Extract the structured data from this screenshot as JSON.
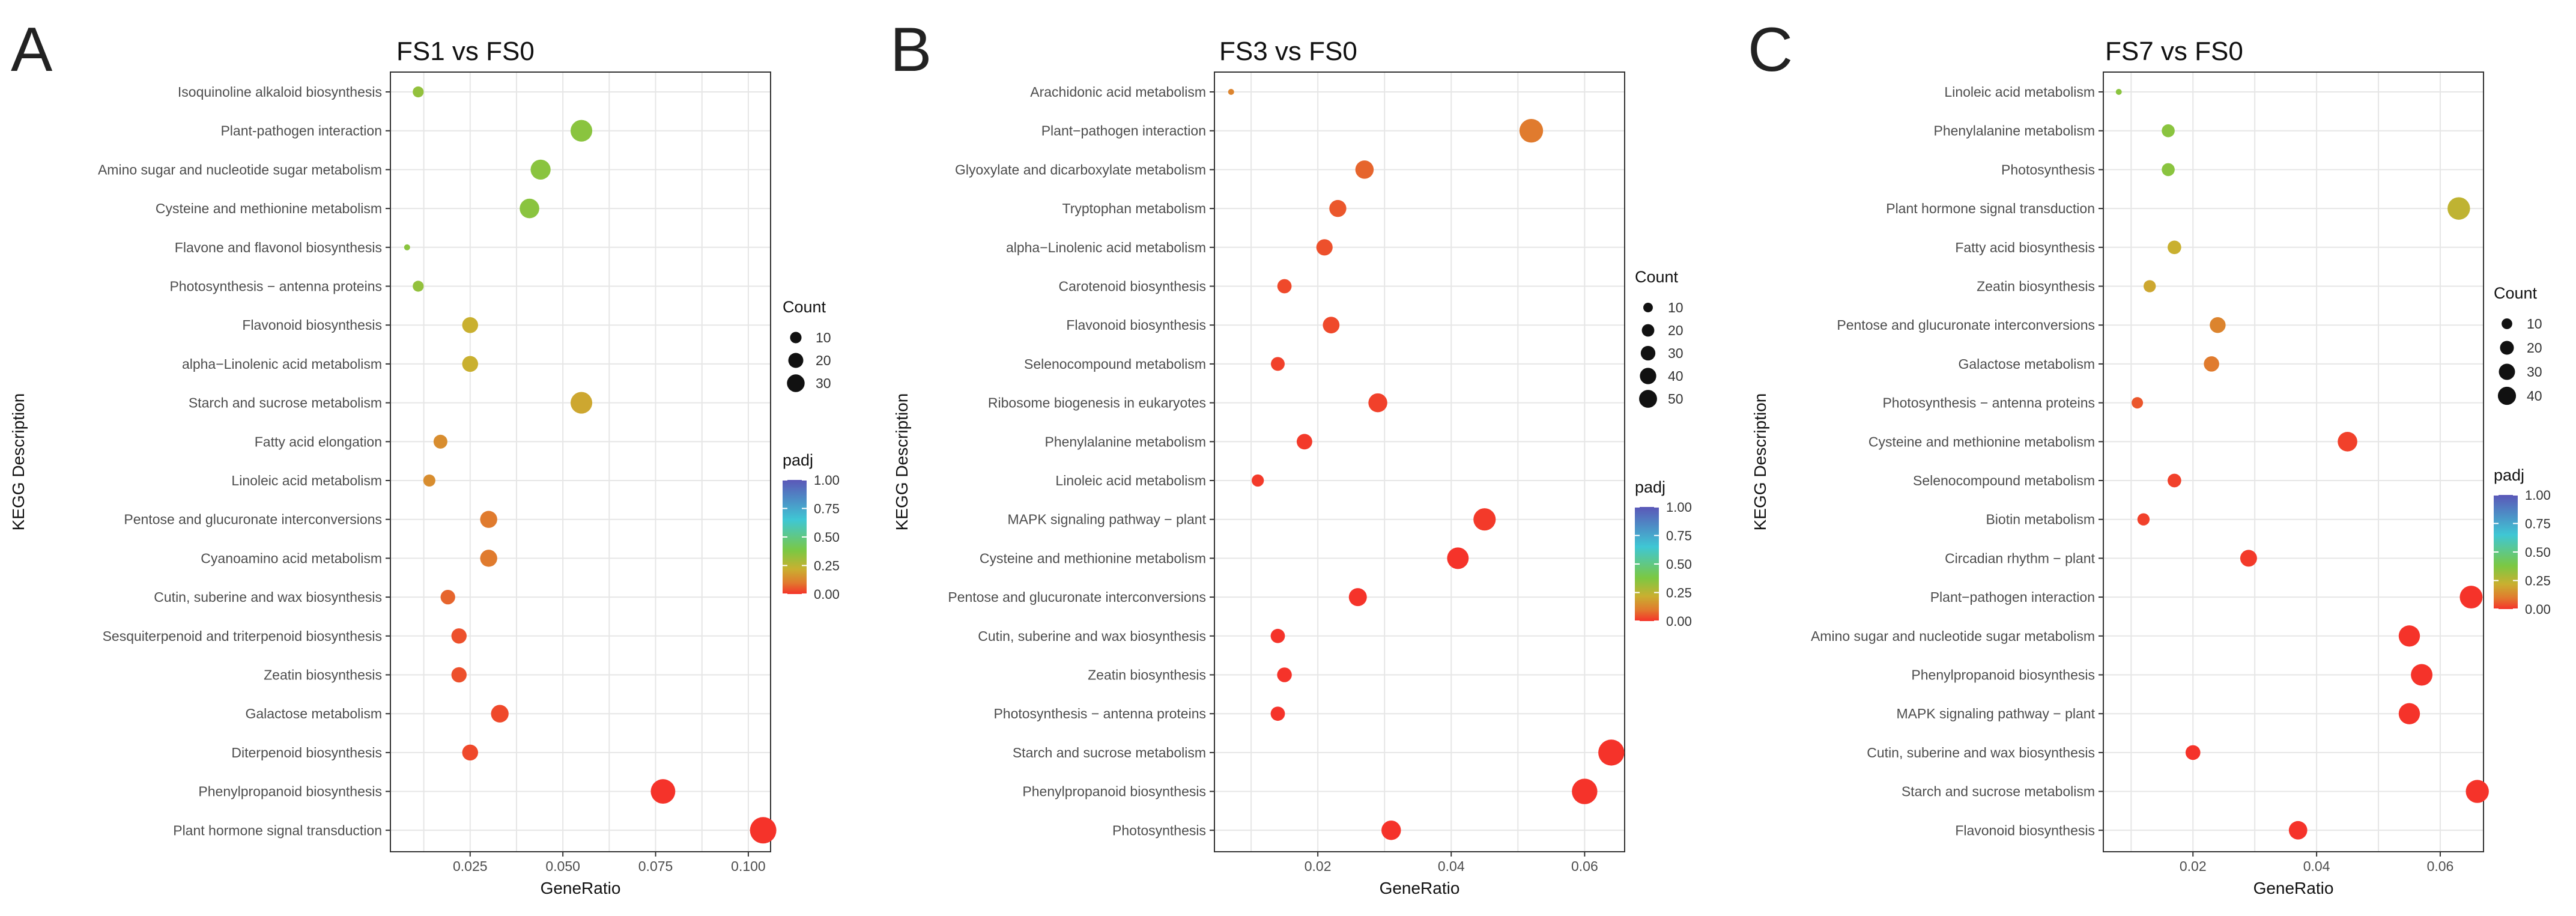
{
  "legend_labels": {
    "count": "Count",
    "padj": "padj"
  },
  "colors": {
    "low": "#F5332A",
    "mid1": "#E07B2E",
    "mid2": "#C9B030",
    "mid3": "#7BC843",
    "mid4": "#3FC7D4",
    "high": "#5B57B8",
    "grid": "#E6E6E6"
  },
  "chart_data": [
    {
      "type": "scatter",
      "panel_letter": "A",
      "title": "FS1 vs FS0",
      "xlabel": "GeneRatio",
      "ylabel": "KEGG Description",
      "xlim": [
        0.0035,
        0.106
      ],
      "xticks": [
        0.025,
        0.05,
        0.075,
        0.1
      ],
      "xtick_labels": [
        "0.025",
        "0.050",
        "0.075",
        "0.100"
      ],
      "count_legend": [
        10,
        20,
        30
      ],
      "count_range": [
        2,
        36
      ],
      "padj_ticks": [
        "0.00",
        "0.25",
        "0.50",
        "0.75",
        "1.00"
      ],
      "points": [
        {
          "term": "Isoquinoline alkaloid biosynthesis",
          "gene_ratio": 0.011,
          "count": 4,
          "padj": 0.33
        },
        {
          "term": "Plant-pathogen interaction",
          "gene_ratio": 0.055,
          "count": 22,
          "padj": 0.35
        },
        {
          "term": "Amino sugar and nucleotide sugar metabolism",
          "gene_ratio": 0.044,
          "count": 18,
          "padj": 0.35
        },
        {
          "term": "Cysteine and methionine metabolism",
          "gene_ratio": 0.041,
          "count": 17,
          "padj": 0.35
        },
        {
          "term": "Flavone and flavonol biosynthesis",
          "gene_ratio": 0.008,
          "count": 2,
          "padj": 0.35
        },
        {
          "term": "Photosynthesis − antenna proteins",
          "gene_ratio": 0.011,
          "count": 4,
          "padj": 0.33
        },
        {
          "term": "Flavonoid biosynthesis",
          "gene_ratio": 0.025,
          "count": 10,
          "padj": 0.22
        },
        {
          "term": "alpha−Linolenic acid metabolism",
          "gene_ratio": 0.025,
          "count": 10,
          "padj": 0.22
        },
        {
          "term": "Starch and sucrose metabolism",
          "gene_ratio": 0.055,
          "count": 22,
          "padj": 0.2
        },
        {
          "term": "Fatty acid elongation",
          "gene_ratio": 0.017,
          "count": 7,
          "padj": 0.14
        },
        {
          "term": "Linoleic acid metabolism",
          "gene_ratio": 0.014,
          "count": 5,
          "padj": 0.14
        },
        {
          "term": "Pentose and glucuronate interconversions",
          "gene_ratio": 0.03,
          "count": 12,
          "padj": 0.1
        },
        {
          "term": "Cyanoamino acid metabolism",
          "gene_ratio": 0.03,
          "count": 12,
          "padj": 0.1
        },
        {
          "term": "Cutin, suberine and wax biosynthesis",
          "gene_ratio": 0.019,
          "count": 8,
          "padj": 0.07
        },
        {
          "term": "Sesquiterpenoid and triterpenoid biosynthesis",
          "gene_ratio": 0.022,
          "count": 9,
          "padj": 0.04
        },
        {
          "term": "Zeatin biosynthesis",
          "gene_ratio": 0.022,
          "count": 9,
          "padj": 0.04
        },
        {
          "term": "Galactose metabolism",
          "gene_ratio": 0.033,
          "count": 13,
          "padj": 0.03
        },
        {
          "term": "Diterpenoid biosynthesis",
          "gene_ratio": 0.025,
          "count": 10,
          "padj": 0.03
        },
        {
          "term": "Phenylpropanoid biosynthesis",
          "gene_ratio": 0.077,
          "count": 30,
          "padj": 0.0
        },
        {
          "term": "Plant hormone signal transduction",
          "gene_ratio": 0.104,
          "count": 36,
          "padj": 0.0
        }
      ]
    },
    {
      "type": "scatter",
      "panel_letter": "B",
      "title": "FS3 vs FS0",
      "xlabel": "GeneRatio",
      "ylabel": "KEGG Description",
      "xlim": [
        0.0045,
        0.066
      ],
      "xticks": [
        0.02,
        0.04,
        0.06
      ],
      "xtick_labels": [
        "0.02",
        "0.04",
        "0.06"
      ],
      "count_legend": [
        10,
        20,
        30,
        40,
        50
      ],
      "count_range": [
        3,
        58
      ],
      "padj_ticks": [
        "0.00",
        "0.25",
        "0.50",
        "0.75",
        "1.00"
      ],
      "points": [
        {
          "term": "Arachidonic acid metabolism",
          "gene_ratio": 0.007,
          "count": 3,
          "padj": 0.12
        },
        {
          "term": "Plant−pathogen interaction",
          "gene_ratio": 0.052,
          "count": 44,
          "padj": 0.1
        },
        {
          "term": "Glyoxylate and dicarboxylate metabolism",
          "gene_ratio": 0.027,
          "count": 23,
          "padj": 0.07
        },
        {
          "term": "Tryptophan metabolism",
          "gene_ratio": 0.023,
          "count": 19,
          "padj": 0.05
        },
        {
          "term": "alpha−Linolenic acid metabolism",
          "gene_ratio": 0.021,
          "count": 17,
          "padj": 0.04
        },
        {
          "term": "Carotenoid biosynthesis",
          "gene_ratio": 0.015,
          "count": 12,
          "padj": 0.03
        },
        {
          "term": "Flavonoid biosynthesis",
          "gene_ratio": 0.022,
          "count": 18,
          "padj": 0.03
        },
        {
          "term": "Selenocompound metabolism",
          "gene_ratio": 0.014,
          "count": 11,
          "padj": 0.02
        },
        {
          "term": "Ribosome biogenesis in eukaryotes",
          "gene_ratio": 0.029,
          "count": 25,
          "padj": 0.02
        },
        {
          "term": "Phenylalanine metabolism",
          "gene_ratio": 0.018,
          "count": 15,
          "padj": 0.01
        },
        {
          "term": "Linoleic acid metabolism",
          "gene_ratio": 0.011,
          "count": 8,
          "padj": 0.01
        },
        {
          "term": "MAPK signaling pathway − plant",
          "gene_ratio": 0.045,
          "count": 38,
          "padj": 0.01
        },
        {
          "term": "Cysteine and methionine metabolism",
          "gene_ratio": 0.041,
          "count": 35,
          "padj": 0.0
        },
        {
          "term": "Pentose and glucuronate interconversions",
          "gene_ratio": 0.026,
          "count": 22,
          "padj": 0.0
        },
        {
          "term": "Cutin, suberine and wax biosynthesis",
          "gene_ratio": 0.014,
          "count": 12,
          "padj": 0.0
        },
        {
          "term": "Zeatin biosynthesis",
          "gene_ratio": 0.015,
          "count": 13,
          "padj": 0.0
        },
        {
          "term": "Photosynthesis − antenna proteins",
          "gene_ratio": 0.014,
          "count": 12,
          "padj": 0.0
        },
        {
          "term": "Starch and sucrose metabolism",
          "gene_ratio": 0.064,
          "count": 56,
          "padj": 0.0
        },
        {
          "term": "Phenylpropanoid biosynthesis",
          "gene_ratio": 0.06,
          "count": 53,
          "padj": 0.0
        },
        {
          "term": "Photosynthesis",
          "gene_ratio": 0.031,
          "count": 27,
          "padj": 0.0
        }
      ]
    },
    {
      "type": "scatter",
      "panel_letter": "C",
      "title": "FS7 vs FS0",
      "xlabel": "GeneRatio",
      "ylabel": "KEGG Description",
      "xlim": [
        0.0055,
        0.067
      ],
      "xticks": [
        0.02,
        0.04,
        0.06
      ],
      "xtick_labels": [
        "0.02",
        "0.04",
        "0.06"
      ],
      "count_legend": [
        10,
        20,
        30,
        40
      ],
      "count_range": [
        2,
        45
      ],
      "padj_ticks": [
        "0.00",
        "0.25",
        "0.50",
        "0.75",
        "1.00"
      ],
      "points": [
        {
          "term": "Linoleic acid metabolism",
          "gene_ratio": 0.008,
          "count": 2,
          "padj": 0.35
        },
        {
          "term": "Phenylalanine metabolism",
          "gene_ratio": 0.016,
          "count": 7,
          "padj": 0.35
        },
        {
          "term": "Photosynthesis",
          "gene_ratio": 0.016,
          "count": 7,
          "padj": 0.35
        },
        {
          "term": "Plant hormone signal transduction",
          "gene_ratio": 0.063,
          "count": 30,
          "padj": 0.24
        },
        {
          "term": "Fatty acid biosynthesis",
          "gene_ratio": 0.017,
          "count": 8,
          "padj": 0.22
        },
        {
          "term": "Zeatin biosynthesis",
          "gene_ratio": 0.013,
          "count": 6,
          "padj": 0.2
        },
        {
          "term": "Pentose and glucuronate interconversions",
          "gene_ratio": 0.024,
          "count": 12,
          "padj": 0.12
        },
        {
          "term": "Galactose metabolism",
          "gene_ratio": 0.023,
          "count": 11,
          "padj": 0.1
        },
        {
          "term": "Photosynthesis − antenna proteins",
          "gene_ratio": 0.011,
          "count": 5,
          "padj": 0.05
        },
        {
          "term": "Cysteine and methionine metabolism",
          "gene_ratio": 0.045,
          "count": 21,
          "padj": 0.02
        },
        {
          "term": "Selenocompound metabolism",
          "gene_ratio": 0.017,
          "count": 8,
          "padj": 0.02
        },
        {
          "term": "Biotin metabolism",
          "gene_ratio": 0.012,
          "count": 6,
          "padj": 0.02
        },
        {
          "term": "Circadian rhythm − plant",
          "gene_ratio": 0.029,
          "count": 14,
          "padj": 0.01
        },
        {
          "term": "Plant−pathogen interaction",
          "gene_ratio": 0.065,
          "count": 31,
          "padj": 0.0
        },
        {
          "term": "Amino sugar and nucleotide sugar metabolism",
          "gene_ratio": 0.055,
          "count": 26,
          "padj": 0.0
        },
        {
          "term": "Phenylpropanoid biosynthesis",
          "gene_ratio": 0.057,
          "count": 27,
          "padj": 0.0
        },
        {
          "term": "MAPK signaling pathway − plant",
          "gene_ratio": 0.055,
          "count": 26,
          "padj": 0.0
        },
        {
          "term": "Cutin, suberine and wax biosynthesis",
          "gene_ratio": 0.02,
          "count": 10,
          "padj": 0.0
        },
        {
          "term": "Starch and sucrose metabolism",
          "gene_ratio": 0.066,
          "count": 32,
          "padj": 0.0
        },
        {
          "term": "Flavonoid biosynthesis",
          "gene_ratio": 0.037,
          "count": 18,
          "padj": 0.0
        }
      ]
    }
  ]
}
